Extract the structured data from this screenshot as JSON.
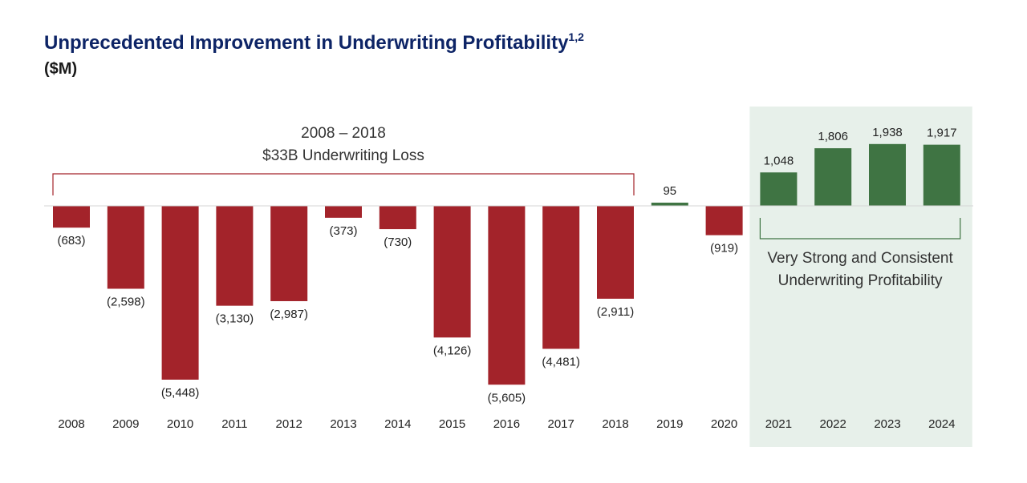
{
  "header": {
    "title": "Unprecedented Improvement in Underwriting Profitability",
    "title_superscript": "1,2",
    "subtitle": "($M)"
  },
  "annotations": {
    "loss_period_line1": "2008 – 2018",
    "loss_period_line2": "$33B Underwriting Loss",
    "profit_period_line1": "Very Strong and Consistent",
    "profit_period_line2": "Underwriting Profitability"
  },
  "colors": {
    "negative": "#a3232a",
    "positive": "#3f7443",
    "highlight_bg": "#e7f0ea",
    "title": "#0d2466"
  },
  "chart_data": {
    "type": "bar",
    "title": "Unprecedented Improvement in Underwriting Profitability",
    "ylabel": "($M)",
    "categories": [
      "2008",
      "2009",
      "2010",
      "2011",
      "2012",
      "2013",
      "2014",
      "2015",
      "2016",
      "2017",
      "2018",
      "2019",
      "2020",
      "2021",
      "2022",
      "2023",
      "2024"
    ],
    "values": [
      -683,
      -2598,
      -5448,
      -3130,
      -2987,
      -373,
      -730,
      -4126,
      -5605,
      -4481,
      -2911,
      95,
      -919,
      1048,
      1806,
      1938,
      1917
    ],
    "data_labels": [
      "(683)",
      "(2,598)",
      "(5,448)",
      "(3,130)",
      "(2,987)",
      "(373)",
      "(730)",
      "(4,126)",
      "(5,605)",
      "(4,481)",
      "(2,911)",
      "95",
      "(919)",
      "1,048",
      "1,806",
      "1,938",
      "1,917"
    ],
    "highlight_categories": [
      "2021",
      "2022",
      "2023",
      "2024"
    ],
    "ylim": [
      -5605,
      1938
    ],
    "grid": false,
    "legend": "none"
  }
}
